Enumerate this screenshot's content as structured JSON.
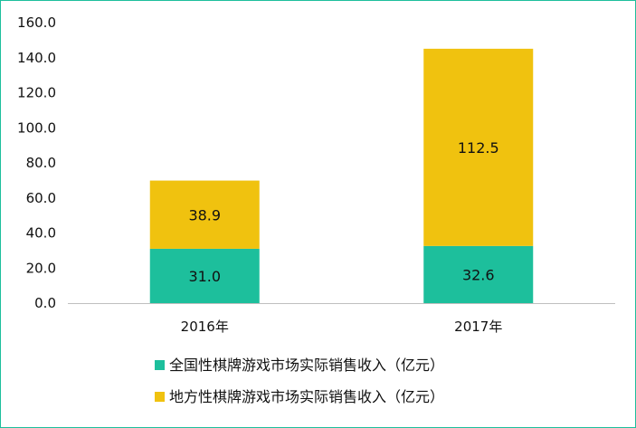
{
  "chart_data": {
    "type": "bar",
    "stacked": true,
    "categories": [
      "2016年",
      "2017年"
    ],
    "series": [
      {
        "name": "全国性棋牌游戏市场实际销售收入（亿元）",
        "values": [
          31.0,
          32.6
        ],
        "labels": [
          "31.0",
          "32.6"
        ],
        "color": "#1dbf9c"
      },
      {
        "name": "地方性棋牌游戏市场实际销售收入（亿元）",
        "values": [
          38.9,
          112.5
        ],
        "labels": [
          "38.9",
          "112.5"
        ],
        "color": "#f0c20f"
      }
    ],
    "ylim": [
      0,
      160
    ],
    "yticks": [
      "0.0",
      "20.0",
      "40.0",
      "60.0",
      "80.0",
      "100.0",
      "120.0",
      "140.0",
      "160.0"
    ],
    "grid": false,
    "legend": "bottom"
  }
}
